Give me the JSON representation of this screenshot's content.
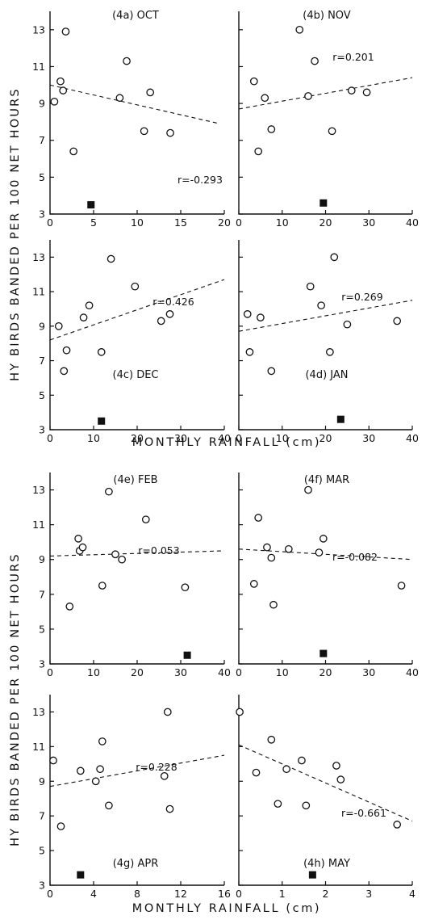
{
  "figure": {
    "ylabel": "HY BIRDS BANDED PER 100 NET HOURS",
    "xlabel": "MONTHLY RAINFALL (cm)"
  },
  "chart_data": [
    {
      "type": "scatter",
      "title": "(4a) OCT",
      "r_label": "r=-0.293",
      "xlim": [
        0,
        20
      ],
      "ylim": [
        3,
        14
      ],
      "xticks": [
        0,
        5,
        10,
        15,
        20
      ],
      "yticks": [
        3,
        5,
        7,
        9,
        11,
        13
      ],
      "points": [
        [
          0.5,
          9.1
        ],
        [
          1.2,
          10.2
        ],
        [
          1.5,
          9.7
        ],
        [
          1.8,
          12.9
        ],
        [
          2.7,
          6.4
        ],
        [
          8.0,
          9.3
        ],
        [
          8.8,
          11.3
        ],
        [
          10.8,
          7.5
        ],
        [
          11.5,
          9.6
        ],
        [
          13.8,
          7.4
        ]
      ],
      "fit": [
        [
          0,
          10.0
        ],
        [
          19.5,
          7.9
        ]
      ],
      "square": [
        4.7,
        3.5
      ]
    },
    {
      "type": "scatter",
      "title": "(4b) NOV",
      "r_label": "r=0.201",
      "xlim": [
        0,
        40
      ],
      "ylim": [
        3,
        14
      ],
      "xticks": [
        0,
        10,
        20,
        30,
        40
      ],
      "yticks": [
        3,
        5,
        7,
        9,
        11,
        13
      ],
      "points": [
        [
          3.5,
          10.2
        ],
        [
          4.5,
          6.4
        ],
        [
          6.0,
          9.3
        ],
        [
          7.5,
          7.6
        ],
        [
          14.0,
          13.0
        ],
        [
          16.0,
          9.4
        ],
        [
          17.5,
          11.3
        ],
        [
          21.5,
          7.5
        ],
        [
          26.0,
          9.7
        ],
        [
          29.5,
          9.6
        ]
      ],
      "fit": [
        [
          0,
          8.7
        ],
        [
          40,
          10.4
        ]
      ],
      "square": [
        19.5,
        3.6
      ]
    },
    {
      "type": "scatter",
      "title": "(4c) DEC",
      "r_label": "r=0.426",
      "xlim": [
        0,
        40
      ],
      "ylim": [
        3,
        14
      ],
      "xticks": [
        0,
        10,
        20,
        30,
        40
      ],
      "yticks": [
        3,
        5,
        7,
        9,
        11,
        13
      ],
      "points": [
        [
          2.0,
          9.0
        ],
        [
          3.2,
          6.4
        ],
        [
          3.8,
          7.6
        ],
        [
          7.7,
          9.5
        ],
        [
          9.0,
          10.2
        ],
        [
          11.8,
          7.5
        ],
        [
          14.0,
          12.9
        ],
        [
          19.5,
          11.3
        ],
        [
          25.5,
          9.3
        ],
        [
          27.5,
          9.7
        ]
      ],
      "fit": [
        [
          0,
          8.2
        ],
        [
          40,
          11.7
        ]
      ],
      "square": [
        11.8,
        3.5
      ]
    },
    {
      "type": "scatter",
      "title": "(4d) JAN",
      "r_label": "r=0.269",
      "xlim": [
        0,
        40
      ],
      "ylim": [
        3,
        14
      ],
      "xticks": [
        0,
        10,
        20,
        30,
        40
      ],
      "yticks": [
        3,
        5,
        7,
        9,
        11,
        13
      ],
      "points": [
        [
          2.0,
          9.7
        ],
        [
          2.5,
          7.5
        ],
        [
          5.0,
          9.5
        ],
        [
          7.5,
          6.4
        ],
        [
          16.5,
          11.3
        ],
        [
          19.0,
          10.2
        ],
        [
          21.0,
          7.5
        ],
        [
          22.0,
          13.0
        ],
        [
          25.0,
          9.1
        ],
        [
          36.5,
          9.3
        ]
      ],
      "fit": [
        [
          0,
          8.7
        ],
        [
          40,
          10.5
        ]
      ],
      "square": [
        23.5,
        3.6
      ]
    },
    {
      "type": "scatter",
      "title": "(4e) FEB",
      "r_label": "r=0.053",
      "xlim": [
        0,
        40
      ],
      "ylim": [
        3,
        14
      ],
      "xticks": [
        0,
        10,
        20,
        30,
        40
      ],
      "yticks": [
        3,
        5,
        7,
        9,
        11,
        13
      ],
      "points": [
        [
          4.5,
          6.3
        ],
        [
          6.5,
          10.2
        ],
        [
          6.8,
          9.5
        ],
        [
          7.5,
          9.7
        ],
        [
          12.0,
          7.5
        ],
        [
          13.5,
          12.9
        ],
        [
          15.0,
          9.3
        ],
        [
          16.5,
          9.0
        ],
        [
          22.0,
          11.3
        ],
        [
          31.0,
          7.4
        ]
      ],
      "fit": [
        [
          0,
          9.2
        ],
        [
          40,
          9.5
        ]
      ],
      "square": [
        31.5,
        3.5
      ]
    },
    {
      "type": "scatter",
      "title": "(4f) MAR",
      "r_label": "r=-0.082",
      "xlim": [
        0,
        40
      ],
      "ylim": [
        3,
        14
      ],
      "xticks": [
        0,
        10,
        20,
        30,
        40
      ],
      "yticks": [
        3,
        5,
        7,
        9,
        11,
        13
      ],
      "points": [
        [
          3.5,
          7.6
        ],
        [
          4.5,
          11.4
        ],
        [
          6.5,
          9.7
        ],
        [
          7.5,
          9.1
        ],
        [
          8.0,
          6.4
        ],
        [
          11.5,
          9.6
        ],
        [
          16.0,
          13.0
        ],
        [
          18.5,
          9.4
        ],
        [
          19.5,
          10.2
        ],
        [
          37.5,
          7.5
        ]
      ],
      "fit": [
        [
          0,
          9.6
        ],
        [
          40,
          9.0
        ]
      ],
      "square": [
        19.5,
        3.6
      ]
    },
    {
      "type": "scatter",
      "title": "(4g) APR",
      "r_label": "r=0.228",
      "xlim": [
        0,
        16
      ],
      "ylim": [
        3,
        14
      ],
      "xticks": [
        0,
        4,
        8,
        12,
        16
      ],
      "yticks": [
        3,
        5,
        7,
        9,
        11,
        13
      ],
      "points": [
        [
          0.3,
          10.2
        ],
        [
          1.0,
          6.4
        ],
        [
          2.8,
          9.6
        ],
        [
          4.2,
          9.0
        ],
        [
          4.6,
          9.7
        ],
        [
          4.8,
          11.3
        ],
        [
          5.4,
          7.6
        ],
        [
          10.5,
          9.3
        ],
        [
          10.8,
          13.0
        ],
        [
          11.0,
          7.4
        ]
      ],
      "fit": [
        [
          0,
          8.7
        ],
        [
          16,
          10.5
        ]
      ],
      "square": [
        2.8,
        3.6
      ]
    },
    {
      "type": "scatter",
      "title": "(4h) MAY",
      "r_label": "r=-0.661",
      "xlim": [
        0,
        4
      ],
      "ylim": [
        3,
        14
      ],
      "xticks": [
        0,
        1,
        2,
        3,
        4
      ],
      "yticks": [
        3,
        5,
        7,
        9,
        11,
        13
      ],
      "points": [
        [
          0.02,
          13.0
        ],
        [
          0.4,
          9.5
        ],
        [
          0.75,
          11.4
        ],
        [
          0.9,
          7.7
        ],
        [
          1.1,
          9.7
        ],
        [
          1.45,
          10.2
        ],
        [
          1.55,
          7.6
        ],
        [
          2.25,
          9.9
        ],
        [
          2.35,
          9.1
        ],
        [
          3.65,
          6.5
        ]
      ],
      "fit": [
        [
          0,
          11.1
        ],
        [
          4,
          6.7
        ]
      ],
      "square": [
        1.7,
        3.6
      ]
    }
  ]
}
